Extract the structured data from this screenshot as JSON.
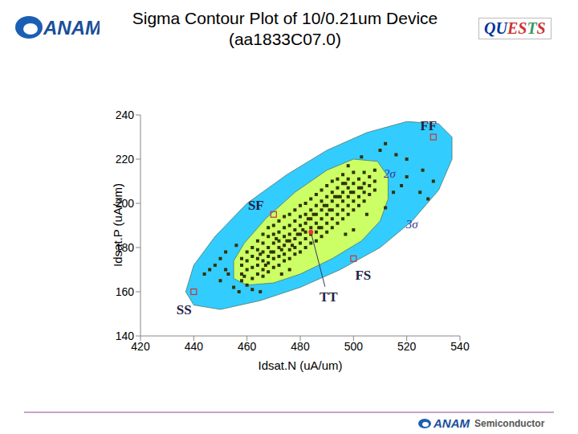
{
  "header": {
    "logo": "ANAM",
    "badge": "QUESTS"
  },
  "footer": {
    "logo": "ANAM",
    "text": "Semiconductor"
  },
  "chart_data": {
    "type": "scatter",
    "title": "Sigma Contour Plot of 10/0.21um Device",
    "subtitle": "(aa1833C07.0)",
    "x_label": "Idsat.N (uA/um)",
    "y_label": "Idsat.P (uA/um)",
    "xlim": [
      420,
      540
    ],
    "xticks": [
      420,
      440,
      460,
      480,
      500,
      520,
      540
    ],
    "ylim": [
      140,
      240
    ],
    "yticks": [
      140,
      160,
      180,
      200,
      220,
      240
    ],
    "grid": false,
    "color": "#333300",
    "marker": "square",
    "contours": [
      {
        "label": "3σ",
        "color": "#33ccff",
        "points": [
          [
            437,
            160
          ],
          [
            440,
            154
          ],
          [
            450,
            152
          ],
          [
            465,
            156
          ],
          [
            480,
            162
          ],
          [
            495,
            170
          ],
          [
            510,
            180
          ],
          [
            522,
            192
          ],
          [
            532,
            206
          ],
          [
            537,
            220
          ],
          [
            537,
            230
          ],
          [
            532,
            236
          ],
          [
            520,
            237
          ],
          [
            505,
            232
          ],
          [
            490,
            224
          ],
          [
            475,
            213
          ],
          [
            460,
            200
          ],
          [
            448,
            185
          ],
          [
            440,
            172
          ]
        ]
      },
      {
        "label": "2σ",
        "color": "#ccff66",
        "points": [
          [
            455,
            166
          ],
          [
            460,
            163
          ],
          [
            470,
            164
          ],
          [
            480,
            168
          ],
          [
            492,
            175
          ],
          [
            503,
            183
          ],
          [
            510,
            192
          ],
          [
            513,
            202
          ],
          [
            513,
            212
          ],
          [
            509,
            219
          ],
          [
            500,
            220
          ],
          [
            490,
            215
          ],
          [
            478,
            205
          ],
          [
            467,
            193
          ],
          [
            459,
            182
          ],
          [
            455,
            174
          ]
        ]
      }
    ],
    "corners": [
      {
        "label": "FF",
        "x": 530,
        "y": 230,
        "color": "#cc3333",
        "marker": "open_square"
      },
      {
        "label": "SF",
        "x": 470,
        "y": 195,
        "color": "#cc3333",
        "marker": "open_square"
      },
      {
        "label": "FS",
        "x": 500,
        "y": 175,
        "color": "#cc3333",
        "marker": "open_square"
      },
      {
        "label": "SS",
        "x": 440,
        "y": 160,
        "color": "#cc3333",
        "marker": "open_square"
      },
      {
        "label": "TT",
        "x": 484,
        "y": 187,
        "color": "#ee3333",
        "marker": "circle"
      }
    ],
    "points": [
      [
        458,
        165
      ],
      [
        458,
        168
      ],
      [
        458,
        172
      ],
      [
        458,
        175
      ],
      [
        460,
        163
      ],
      [
        460,
        170
      ],
      [
        460,
        174
      ],
      [
        460,
        178
      ],
      [
        462,
        166
      ],
      [
        462,
        171
      ],
      [
        462,
        176
      ],
      [
        462,
        180
      ],
      [
        464,
        168
      ],
      [
        464,
        172
      ],
      [
        464,
        175
      ],
      [
        464,
        179
      ],
      [
        464,
        183
      ],
      [
        466,
        167
      ],
      [
        466,
        170
      ],
      [
        466,
        174
      ],
      [
        466,
        178
      ],
      [
        466,
        182
      ],
      [
        466,
        186
      ],
      [
        468,
        169
      ],
      [
        468,
        173
      ],
      [
        468,
        176
      ],
      [
        468,
        180
      ],
      [
        468,
        185
      ],
      [
        468,
        189
      ],
      [
        470,
        171
      ],
      [
        470,
        175
      ],
      [
        470,
        178
      ],
      [
        470,
        182
      ],
      [
        470,
        186
      ],
      [
        470,
        190
      ],
      [
        472,
        172
      ],
      [
        472,
        176
      ],
      [
        472,
        180
      ],
      [
        472,
        183
      ],
      [
        472,
        187
      ],
      [
        472,
        192
      ],
      [
        474,
        174
      ],
      [
        474,
        177
      ],
      [
        474,
        181
      ],
      [
        474,
        185
      ],
      [
        474,
        189
      ],
      [
        474,
        194
      ],
      [
        476,
        175
      ],
      [
        476,
        179
      ],
      [
        476,
        183
      ],
      [
        476,
        186
      ],
      [
        476,
        190
      ],
      [
        476,
        195
      ],
      [
        478,
        177
      ],
      [
        478,
        180
      ],
      [
        478,
        184
      ],
      [
        478,
        188
      ],
      [
        478,
        192
      ],
      [
        478,
        197
      ],
      [
        480,
        178
      ],
      [
        480,
        182
      ],
      [
        480,
        186
      ],
      [
        480,
        190
      ],
      [
        480,
        194
      ],
      [
        480,
        199
      ],
      [
        482,
        180
      ],
      [
        482,
        184
      ],
      [
        482,
        187
      ],
      [
        482,
        191
      ],
      [
        482,
        195
      ],
      [
        482,
        200
      ],
      [
        484,
        182
      ],
      [
        484,
        186
      ],
      [
        484,
        189
      ],
      [
        484,
        193
      ],
      [
        484,
        197
      ],
      [
        484,
        202
      ],
      [
        486,
        183
      ],
      [
        486,
        187
      ],
      [
        486,
        191
      ],
      [
        486,
        195
      ],
      [
        486,
        199
      ],
      [
        486,
        204
      ],
      [
        488,
        185
      ],
      [
        488,
        189
      ],
      [
        488,
        193
      ],
      [
        488,
        197
      ],
      [
        488,
        201
      ],
      [
        488,
        206
      ],
      [
        490,
        187
      ],
      [
        490,
        191
      ],
      [
        490,
        195
      ],
      [
        490,
        199
      ],
      [
        490,
        203
      ],
      [
        490,
        208
      ],
      [
        492,
        189
      ],
      [
        492,
        193
      ],
      [
        492,
        197
      ],
      [
        492,
        201
      ],
      [
        492,
        205
      ],
      [
        492,
        210
      ],
      [
        494,
        191
      ],
      [
        494,
        195
      ],
      [
        494,
        199
      ],
      [
        494,
        203
      ],
      [
        494,
        207
      ],
      [
        494,
        211
      ],
      [
        496,
        193
      ],
      [
        496,
        197
      ],
      [
        496,
        201
      ],
      [
        496,
        205
      ],
      [
        496,
        209
      ],
      [
        496,
        213
      ],
      [
        498,
        195
      ],
      [
        498,
        199
      ],
      [
        498,
        203
      ],
      [
        498,
        207
      ],
      [
        498,
        211
      ],
      [
        500,
        197
      ],
      [
        500,
        201
      ],
      [
        500,
        205
      ],
      [
        500,
        209
      ],
      [
        500,
        214
      ],
      [
        502,
        199
      ],
      [
        502,
        203
      ],
      [
        502,
        207
      ],
      [
        502,
        211
      ],
      [
        504,
        201
      ],
      [
        504,
        205
      ],
      [
        504,
        209
      ],
      [
        504,
        214
      ],
      [
        506,
        204
      ],
      [
        506,
        208
      ],
      [
        506,
        212
      ],
      [
        508,
        206
      ],
      [
        508,
        210
      ],
      [
        508,
        215
      ],
      [
        459,
        167
      ],
      [
        467,
        172
      ],
      [
        471,
        184
      ],
      [
        477,
        181
      ],
      [
        483,
        193
      ],
      [
        487,
        189
      ],
      [
        491,
        197
      ],
      [
        495,
        203
      ],
      [
        499,
        205
      ],
      [
        503,
        207
      ],
      [
        469,
        178
      ],
      [
        473,
        179
      ],
      [
        479,
        186
      ],
      [
        485,
        195
      ],
      [
        489,
        199
      ],
      [
        493,
        203
      ],
      [
        481,
        188
      ],
      [
        475,
        183
      ],
      [
        465,
        177
      ],
      [
        497,
        209
      ],
      [
        448,
        172
      ],
      [
        450,
        175
      ],
      [
        452,
        170
      ],
      [
        453,
        168
      ],
      [
        455,
        162
      ],
      [
        457,
        160
      ],
      [
        462,
        161
      ],
      [
        465,
        160
      ],
      [
        452,
        178
      ],
      [
        456,
        181
      ],
      [
        473,
        168
      ],
      [
        476,
        170
      ],
      [
        497,
        186
      ],
      [
        500,
        188
      ],
      [
        505,
        195
      ],
      [
        512,
        198
      ],
      [
        515,
        205
      ],
      [
        518,
        208
      ],
      [
        520,
        212
      ],
      [
        525,
        205
      ],
      [
        528,
        202
      ],
      [
        530,
        210
      ],
      [
        520,
        220
      ],
      [
        516,
        222
      ],
      [
        510,
        224
      ],
      [
        503,
        221
      ],
      [
        498,
        217
      ],
      [
        512,
        227
      ],
      [
        526,
        215
      ],
      [
        450,
        165
      ],
      [
        446,
        170
      ],
      [
        444,
        168
      ]
    ]
  }
}
